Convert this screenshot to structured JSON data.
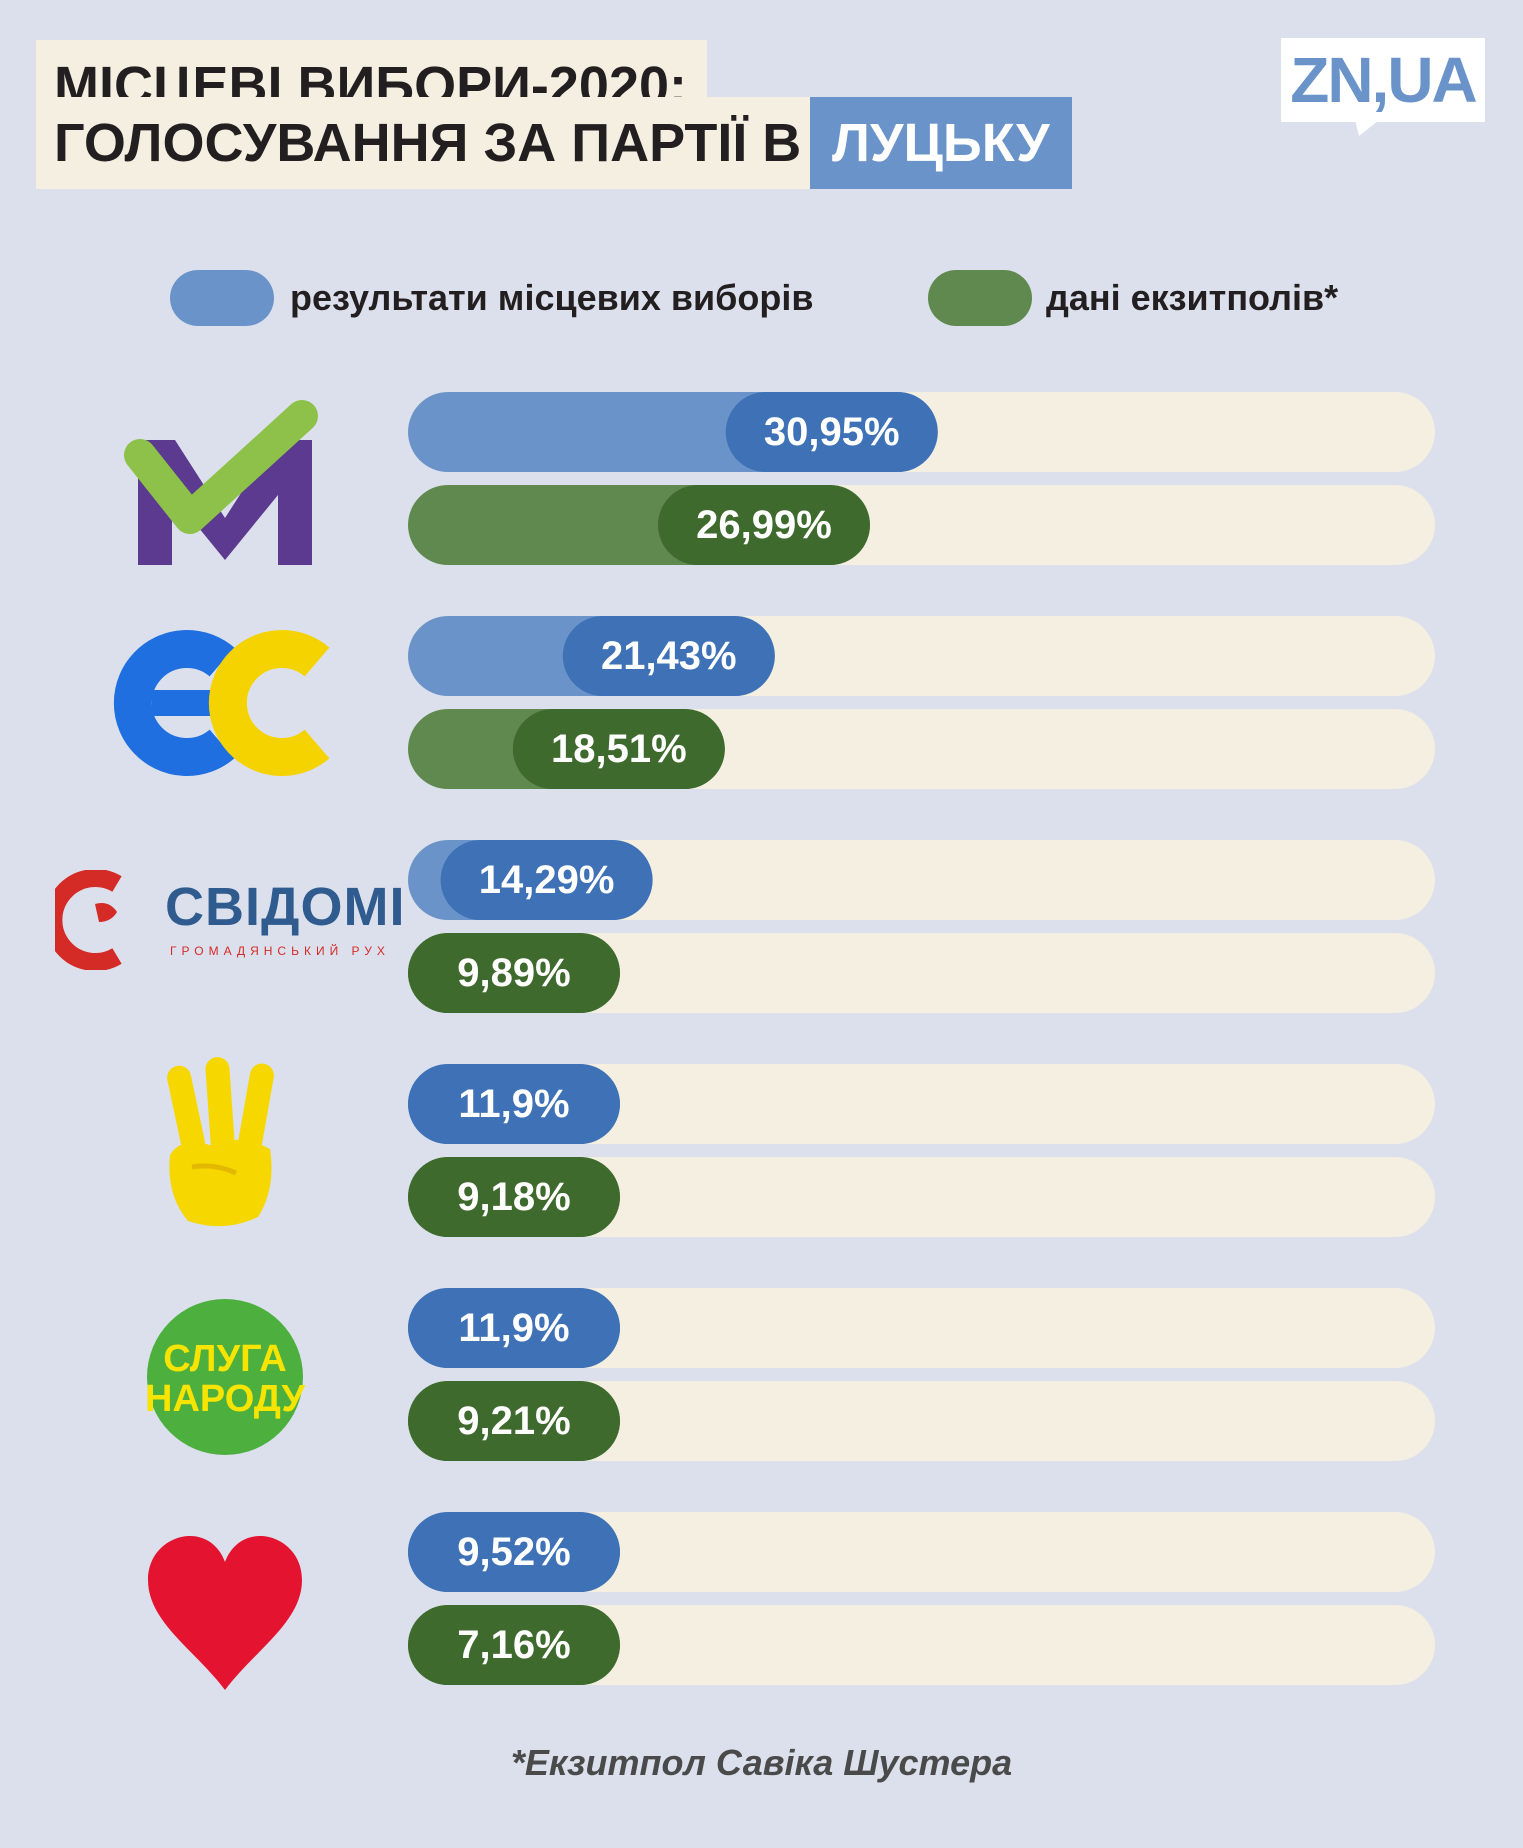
{
  "title": {
    "line1": "МІСЦЕВІ ВИБОРИ-2020:",
    "line2": "ГОЛОСУВАННЯ ЗА ПАРТІЇ В",
    "city": "ЛУЦЬКУ"
  },
  "brand": "ZN,UA",
  "legend": {
    "official": "результати місцевих виборів",
    "exitpoll": "дані екзитполів*"
  },
  "colors": {
    "official_bar": "#6a93c9",
    "official_pill": "#3e71b5",
    "exitpoll_bar": "#60894f",
    "exitpoll_pill": "#3f6a2d",
    "track": "#f4efe1",
    "background": "#dbe0ec"
  },
  "logos": [
    {
      "icon": "m-checkmark-logo"
    },
    {
      "icon": "es-logo"
    },
    {
      "icon": "svidomi-logo",
      "text": "СВІДОМІ",
      "subtext": "ГРОМАДЯНСЬКИЙ РУХ"
    },
    {
      "icon": "three-fingers-logo"
    },
    {
      "icon": "sluha-narodu-logo",
      "line1": "СЛУГА",
      "line2": "НАРОДУ"
    },
    {
      "icon": "heart-logo"
    }
  ],
  "chart_data": {
    "type": "bar",
    "orientation": "horizontal",
    "categories": [
      "М",
      "ЄС",
      "СВІДОМІ",
      "",
      "СЛУГА НАРОДУ",
      ""
    ],
    "series": [
      {
        "name": "результати місцевих виборів",
        "values": [
          30.95,
          21.43,
          14.29,
          11.9,
          11.9,
          9.52
        ],
        "labels": [
          "30,95%",
          "21,43%",
          "14,29%",
          "11,9%",
          "11,9%",
          "9,52%"
        ]
      },
      {
        "name": "дані екзитполів*",
        "values": [
          26.99,
          18.51,
          9.89,
          9.18,
          9.21,
          7.16
        ],
        "labels": [
          "26,99%",
          "18,51%",
          "9,89%",
          "9,18%",
          "9,21%",
          "7,16%"
        ]
      }
    ],
    "xlim": [
      0,
      60
    ],
    "grid": false,
    "legend_position": "top"
  },
  "footnote": "*Екзитпол Савіка Шустера"
}
